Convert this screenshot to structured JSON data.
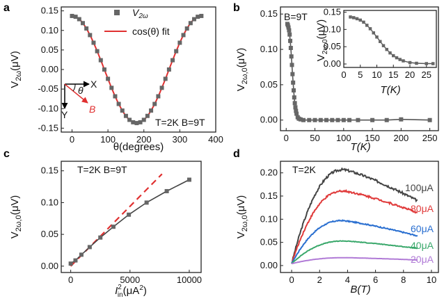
{
  "colors": {
    "marker": "#666666",
    "fit": "#e03030",
    "i100": "#444444",
    "i80": "#e03a3a",
    "i60": "#2a6fd0",
    "i40": "#3aa86b",
    "i20": "#b07ad6"
  },
  "chart_data": [
    {
      "panel": "a",
      "type": "scatter",
      "xlabel": "θ(degrees)",
      "ylabel": "V2ω(μV)",
      "xlim": [
        -30,
        400
      ],
      "ylim": [
        -0.16,
        0.16
      ],
      "xticks": [
        0,
        100,
        200,
        300,
        400
      ],
      "yticks": [
        -0.15,
        -0.1,
        -0.05,
        0.0,
        0.05,
        0.1,
        0.15
      ],
      "legend": [
        "V2ω",
        "cos(θ) fit"
      ],
      "legend_position": "top-right",
      "annotation": "T=2K B=9T",
      "series": [
        {
          "name": "V2ω",
          "kind": "markers",
          "amplitude": 0.137,
          "x_start": 0,
          "x_end": 360,
          "x_step": 10
        },
        {
          "name": "cos(θ) fit",
          "kind": "line",
          "amplitude": 0.137
        }
      ]
    },
    {
      "panel": "b",
      "type": "line",
      "xlabel": "T(K)",
      "ylabel": "V2ω,0(μV)",
      "xlim": [
        -10,
        265
      ],
      "ylim": [
        -0.015,
        0.16
      ],
      "xticks": [
        0,
        50,
        100,
        150,
        200,
        250
      ],
      "yticks": [
        0.0,
        0.05,
        0.1,
        0.15
      ],
      "annotation": "B=9T",
      "series": [
        {
          "name": "main",
          "x": [
            2,
            3,
            4,
            5,
            6,
            7,
            8,
            9,
            10,
            11,
            12,
            13,
            14,
            15,
            16,
            17,
            18,
            20,
            22,
            25,
            30,
            40,
            50,
            60,
            70,
            80,
            90,
            100,
            110,
            125,
            150,
            175,
            200,
            250
          ],
          "y": [
            0.136,
            0.134,
            0.131,
            0.127,
            0.121,
            0.112,
            0.102,
            0.09,
            0.078,
            0.065,
            0.053,
            0.042,
            0.032,
            0.024,
            0.018,
            0.013,
            0.009,
            0.004,
            0.002,
            0.001,
            0.0,
            0.0,
            0.0,
            0.0,
            0.0,
            0.0,
            0.0,
            0.0,
            0.0,
            0.0,
            0.0,
            0.0,
            0.001,
            0.0
          ]
        }
      ],
      "inset": {
        "xlabel": "T(K)",
        "ylabel": "V2ω,0",
        "xlim": [
          0,
          28
        ],
        "ylim": [
          -0.01,
          0.155
        ],
        "xticks": [
          0,
          5,
          10,
          15,
          20,
          25
        ],
        "yticks": [
          0.0,
          0.05,
          0.1,
          0.15
        ],
        "x": [
          2,
          3,
          4,
          5,
          6,
          7,
          8,
          9,
          10,
          11,
          12,
          13,
          14,
          15,
          16,
          17,
          18,
          20,
          22,
          25,
          27
        ],
        "y": [
          0.136,
          0.134,
          0.131,
          0.127,
          0.121,
          0.112,
          0.102,
          0.09,
          0.078,
          0.065,
          0.053,
          0.042,
          0.032,
          0.024,
          0.018,
          0.013,
          0.009,
          0.004,
          0.002,
          0.001,
          0.001
        ]
      }
    },
    {
      "panel": "c",
      "type": "line",
      "xlabel": "I²in(μA²)",
      "ylabel": "V2ω,0(μV)",
      "xlim": [
        -800,
        11000
      ],
      "ylim": [
        -0.01,
        0.165
      ],
      "xticks": [
        0,
        5000,
        10000
      ],
      "yticks": [
        0.0,
        0.05,
        0.1,
        0.15
      ],
      "annotation": "T=2K B=9T",
      "series": [
        {
          "name": "data",
          "x": [
            0,
            400,
            900,
            1600,
            2500,
            3600,
            4900,
            6400,
            8100,
            10000
          ],
          "y": [
            0.004,
            0.009,
            0.018,
            0.03,
            0.045,
            0.062,
            0.081,
            0.1,
            0.118,
            0.136
          ]
        },
        {
          "name": "linear fit",
          "style": "dashed",
          "x": [
            0,
            7700
          ],
          "y": [
            0.0,
            0.145
          ]
        }
      ]
    },
    {
      "panel": "d",
      "type": "line",
      "xlabel": "B(T)",
      "ylabel": "V2ω,0(μV)",
      "xlim": [
        -0.8,
        10.5
      ],
      "ylim": [
        -0.015,
        0.225
      ],
      "xticks": [
        0,
        2,
        4,
        6,
        8,
        10
      ],
      "yticks": [
        0.0,
        0.05,
        0.1,
        0.15,
        0.2
      ],
      "annotation": "T=2K",
      "series": [
        {
          "name": "100μA",
          "peak_field": 3.7,
          "peak": 0.203,
          "end": 0.136
        },
        {
          "name": "80μA",
          "peak_field": 3.7,
          "peak": 0.157,
          "end": 0.11
        },
        {
          "name": "60μA",
          "peak_field": 3.6,
          "peak": 0.093,
          "end": 0.06
        },
        {
          "name": "40μA",
          "peak_field": 3.7,
          "peak": 0.049,
          "end": 0.033
        },
        {
          "name": "20μA",
          "peak_field": 3.8,
          "peak": 0.013,
          "end": 0.008
        }
      ]
    }
  ],
  "labels": {
    "panel_a": "a",
    "panel_b": "b",
    "panel_c": "c",
    "panel_d": "d",
    "a_legend_marker": "V2ω",
    "a_legend_fit": "cos(θ) fit",
    "a_cond": "T=2K B=9T",
    "a_xlabel": "θ(degrees)",
    "a_axis_x": "X",
    "a_axis_y": "Y",
    "a_axis_theta": "θ",
    "a_axis_b": "B",
    "b_cond": "B=9T",
    "b_xlabel": "T(K)",
    "b_inset_xlabel": "T(K)",
    "c_cond": "T=2K B=9T",
    "d_cond": "T=2K",
    "d_xlabel": "B(T)",
    "d_s100": "100μA",
    "d_s80": "80μA",
    "d_s60": "60μA",
    "d_s40": "40μA",
    "d_s20": "20μA"
  }
}
